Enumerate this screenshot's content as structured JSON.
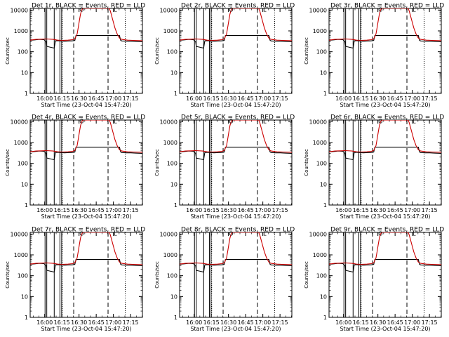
{
  "panels": [
    {
      "title": "Det 1r, BLACK = Events, RED = LLD"
    },
    {
      "title": "Det 2r, BLACK = Events, RED = LLD"
    },
    {
      "title": "Det 3r, BLACK = Events, RED = LLD"
    },
    {
      "title": "Det 4r, BLACK = Events, RED = LLD"
    },
    {
      "title": "Det 5r, BLACK = Events, RED = LLD"
    },
    {
      "title": "Det 6r, BLACK = Events, RED = LLD"
    },
    {
      "title": "Det 7r, BLACK = Events, RED = LLD"
    },
    {
      "title": "Det 8r, BLACK = Events, RED = LLD"
    },
    {
      "title": "Det 9r, BLACK = Events, RED = LLD"
    }
  ],
  "chart_data": {
    "type": "line",
    "panel_count": 9,
    "grid_layout": "3x3",
    "xlabel": "Start Time (23-Oct-04 15:47:20)",
    "ylabel": "Counts/sec",
    "x_unit": "minutes after 15:47:20",
    "xlim": [
      0,
      98
    ],
    "y_scale": "log",
    "ylim": [
      1,
      12000
    ],
    "x_tick_labels": [
      "16:00",
      "16:15",
      "16:30",
      "16:45",
      "17:00",
      "17:15"
    ],
    "x_tick_values": [
      12.67,
      27.67,
      42.67,
      57.67,
      72.67,
      87.67
    ],
    "y_tick_labels": [
      "1",
      "10",
      "100",
      "1000",
      "10000"
    ],
    "y_tick_values": [
      1,
      10,
      100,
      1000,
      10000
    ],
    "colors": {
      "events": "#000000",
      "lld": "#cc0000"
    },
    "series": [
      {
        "name": "Events",
        "color": "#000000",
        "x": [
          0,
          4,
          8,
          12,
          14,
          14.5,
          21,
          22,
          24,
          27,
          30,
          34,
          36,
          38,
          39,
          40,
          78,
          79,
          80,
          84,
          88,
          92,
          98
        ],
        "y": [
          350,
          370,
          390,
          380,
          300,
          180,
          150,
          330,
          340,
          330,
          320,
          330,
          330,
          340,
          350,
          600,
          600,
          350,
          330,
          320,
          320,
          310,
          300
        ]
      },
      {
        "name": "LLD",
        "color": "#cc0000",
        "x": [
          0,
          5,
          10,
          14,
          20,
          24,
          28,
          33,
          37,
          39,
          41,
          42,
          43,
          44,
          45,
          46,
          69,
          70,
          72,
          74,
          76,
          78,
          80,
          85,
          90,
          98
        ],
        "y": [
          360,
          390,
          400,
          410,
          390,
          360,
          350,
          360,
          380,
          420,
          700,
          1500,
          3200,
          6500,
          10000,
          12000,
          12000,
          9000,
          3500,
          1400,
          700,
          450,
          390,
          360,
          350,
          340
        ]
      }
    ],
    "markers": [
      {
        "style": "solid",
        "x": 13
      },
      {
        "style": "solid",
        "x": 14.5
      },
      {
        "style": "solid",
        "x": 21
      },
      {
        "style": "solid",
        "x": 26
      },
      {
        "style": "solid",
        "x": 27.5
      },
      {
        "style": "dashed",
        "x": 38
      },
      {
        "style": "dashed",
        "x": 68
      },
      {
        "style": "dotted",
        "x": 28
      },
      {
        "style": "dotted",
        "x": 83
      }
    ],
    "flag_labels": [
      "O",
      "L"
    ],
    "flag_x": [
      43,
      73
    ],
    "flag_y": [
      10000,
      10000
    ]
  }
}
